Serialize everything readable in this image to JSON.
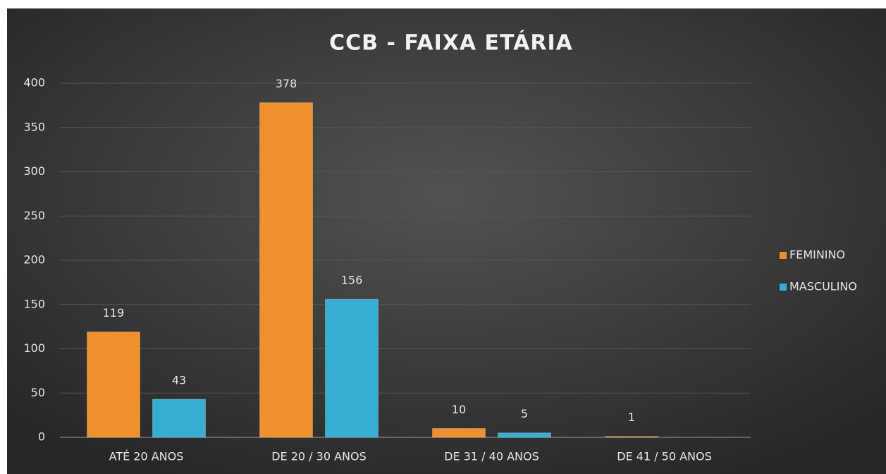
{
  "chart_data": {
    "type": "bar",
    "title": "CCB - FAIXA ETÁRIA",
    "categories": [
      "ATÉ 20 ANOS",
      "DE 20 / 30 ANOS",
      "DE 31 / 40 ANOS",
      "DE 41 / 50 ANOS"
    ],
    "series": [
      {
        "name": "FEMININO",
        "color": "#f0902c",
        "values": [
          119,
          378,
          10,
          1
        ]
      },
      {
        "name": "MASCULINO",
        "color": "#36aed4",
        "values": [
          43,
          156,
          5,
          null
        ]
      }
    ],
    "ylim": [
      0,
      400
    ],
    "yticks": [
      0,
      50,
      100,
      150,
      200,
      250,
      300,
      350,
      400
    ],
    "grid": true,
    "legend": "right"
  }
}
